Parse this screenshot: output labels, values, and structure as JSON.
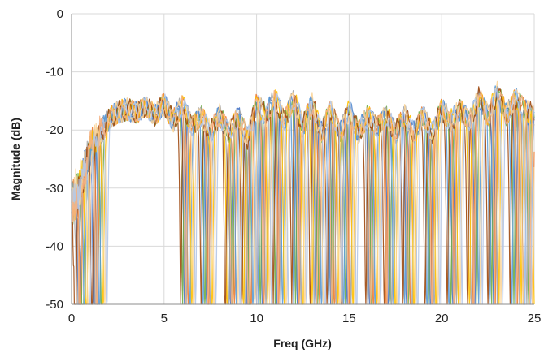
{
  "chart_data": {
    "type": "line",
    "title": "",
    "xlabel": "Freq (GHz)",
    "ylabel": "Magnitude (dB)",
    "xlim": [
      0,
      25
    ],
    "ylim": [
      -50,
      0
    ],
    "x_ticks": [
      0,
      5,
      10,
      15,
      20,
      25
    ],
    "y_ticks": [
      0,
      -10,
      -20,
      -30,
      -40,
      -50
    ],
    "x_tick_labels": [
      "0",
      "5",
      "10",
      "15",
      "20",
      "25"
    ],
    "y_tick_labels": [
      "0",
      "-10",
      "-20",
      "-30",
      "-40",
      "-50"
    ],
    "grid": true,
    "legend": "none",
    "envelope": {
      "x": [
        0,
        0.5,
        1,
        1.5,
        2,
        2.5,
        3,
        3.5,
        4,
        4.5,
        5,
        5.5,
        6,
        6.5,
        7,
        7.5,
        8,
        8.5,
        9,
        9.5,
        10,
        10.5,
        11,
        11.5,
        12,
        12.5,
        13,
        13.5,
        14,
        14.5,
        15,
        15.5,
        16,
        16.5,
        17,
        17.5,
        18,
        18.5,
        19,
        19.5,
        20,
        20.5,
        21,
        21.5,
        22,
        22.5,
        23,
        23.5,
        24,
        24.5,
        25
      ],
      "y": [
        -29,
        -26,
        -21,
        -19,
        -17.5,
        -16.5,
        -16,
        -16.5,
        -15.5,
        -17,
        -15,
        -18,
        -15,
        -19,
        -17,
        -20,
        -17,
        -20,
        -17,
        -21,
        -15,
        -17,
        -14,
        -18,
        -14,
        -19,
        -15,
        -20,
        -16,
        -20,
        -16,
        -20,
        -17,
        -19,
        -17,
        -20,
        -17,
        -20,
        -17,
        -20,
        -16,
        -18,
        -16,
        -18,
        -14,
        -17,
        -13,
        -17,
        -14,
        -16,
        -17
      ]
    },
    "series": [
      {
        "color": "#4472c4",
        "notch_x": [
          0.4,
          1.2,
          6.1,
          7.3,
          8.6,
          9.5,
          10.3,
          11.1,
          12.2,
          13.2,
          14.0,
          14.9,
          16.1,
          17.1,
          18.1,
          19.4,
          20.6,
          21.8,
          22.8,
          24.0,
          24.8
        ]
      },
      {
        "color": "#ed7d31",
        "notch_x": [
          0.5,
          1.4,
          6.3,
          7.4,
          8.8,
          9.7,
          10.4,
          11.2,
          12.3,
          13.4,
          14.2,
          15.0,
          16.3,
          17.0,
          18.3,
          19.5,
          20.7,
          21.7,
          22.9,
          24.1,
          24.9
        ]
      },
      {
        "color": "#70ad47",
        "notch_x": [
          0.6,
          1.6,
          6.0,
          7.2,
          8.7,
          9.6,
          10.2,
          11.0,
          12.1,
          13.3,
          14.1,
          14.8,
          16.2,
          17.2,
          18.2,
          19.3,
          20.5,
          21.9,
          22.7,
          23.9,
          24.7
        ]
      },
      {
        "color": "#a5a5a5",
        "notch_x": [
          0.3,
          1.3,
          6.2,
          7.5,
          8.5,
          9.4,
          10.5,
          11.3,
          12.4,
          13.1,
          14.3,
          15.1,
          16.0,
          17.3,
          18.4,
          19.6,
          20.8,
          21.6,
          23.0,
          24.2,
          24.6
        ]
      },
      {
        "color": "#5b9bd5",
        "notch_x": [
          0.7,
          1.5,
          6.4,
          7.1,
          8.9,
          9.8,
          10.1,
          11.4,
          12.0,
          13.5,
          13.9,
          14.7,
          16.4,
          17.4,
          18.0,
          19.2,
          20.4,
          22.0,
          22.6,
          23.8,
          24.5
        ]
      },
      {
        "color": "#ffc000",
        "notch_x": [
          0.8,
          1.7,
          6.5,
          7.6,
          8.4,
          9.3,
          10.6,
          11.5,
          12.5,
          13.0,
          14.4,
          15.2,
          16.5,
          17.5,
          18.5,
          19.7,
          20.9,
          21.5,
          23.1,
          24.3,
          25.0
        ]
      },
      {
        "color": "#9e480e",
        "notch_x": [
          0.2,
          1.1,
          5.9,
          7.0,
          8.3,
          9.2,
          10.0,
          10.9,
          11.9,
          12.9,
          13.8,
          14.6,
          15.9,
          16.9,
          17.9,
          19.1,
          20.3,
          21.4,
          22.5,
          23.7,
          24.4
        ]
      },
      {
        "color": "#fbd59a",
        "notch_x": [
          0.9,
          1.8,
          6.6,
          7.7,
          9.0,
          9.9,
          10.7,
          11.6,
          12.6,
          13.6,
          14.5,
          15.3,
          16.6,
          17.6,
          18.6,
          19.8,
          21.0,
          22.1,
          23.2,
          24.4,
          24.9
        ]
      },
      {
        "color": "#b4c7e7",
        "notch_x": [
          1.0,
          1.9,
          6.7,
          7.8,
          9.1,
          10.0,
          10.8,
          11.7,
          12.7,
          13.7,
          14.6,
          15.4,
          16.7,
          17.7,
          18.7,
          19.9,
          21.1,
          22.2,
          23.3,
          24.5,
          24.8
        ]
      },
      {
        "color": "#f4b183",
        "notch_x": [
          0.45,
          1.35,
          6.15,
          7.35,
          8.65,
          9.55,
          10.35,
          11.15,
          12.25,
          13.25,
          14.05,
          14.95,
          16.15,
          17.05,
          18.15,
          19.45,
          20.65,
          21.75,
          22.85,
          24.05,
          24.75
        ]
      }
    ]
  }
}
